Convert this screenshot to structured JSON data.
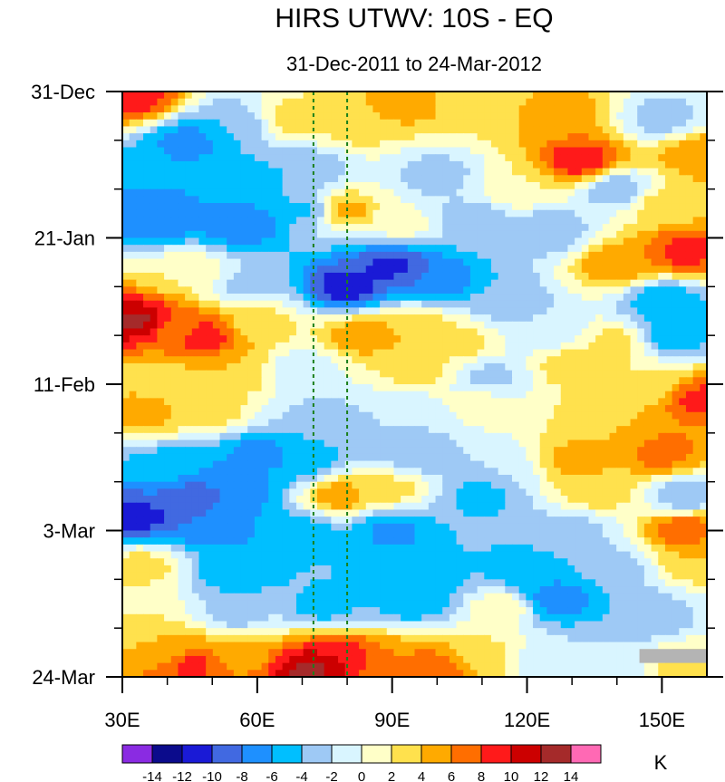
{
  "chart_data": {
    "type": "heatmap",
    "title": "HIRS UTWV: 10S - EQ",
    "subtitle": "31-Dec-2011 to 24-Mar-2012",
    "x": {
      "range": [
        30,
        160
      ],
      "ticks": [
        30,
        60,
        90,
        120,
        150
      ],
      "tick_labels": [
        "30E",
        "60E",
        "90E",
        "120E",
        "150E"
      ]
    },
    "y": {
      "range_days": [
        0,
        84
      ],
      "ticks": [
        0,
        21,
        42,
        63,
        84
      ],
      "tick_labels": [
        "31-Dec",
        "21-Jan",
        "11-Feb",
        "3-Mar",
        "24-Mar"
      ],
      "minor_step_days": 7,
      "direction": "time increases downward"
    },
    "reference_lines_lon": [
      72.5,
      80
    ],
    "missing_region": {
      "lon": [
        145,
        160
      ],
      "day": [
        80,
        82
      ]
    },
    "colorbar": {
      "unit": "K",
      "levels": [
        -14,
        -12,
        -10,
        -8,
        -6,
        -4,
        -2,
        0,
        2,
        4,
        6,
        8,
        10,
        12,
        14
      ],
      "level_labels": [
        "-14",
        "-12",
        "-10",
        "-8",
        "-6",
        "-4",
        "-2",
        "0",
        "2",
        "4",
        "6",
        "8",
        "10",
        "12",
        "14"
      ],
      "colors": [
        "#8a2be2",
        "#0b0b8c",
        "#1a1ad6",
        "#4169e1",
        "#1e90ff",
        "#00bfff",
        "#9ec9f5",
        "#d9f5ff",
        "#ffffc8",
        "#ffe14d",
        "#ffaa00",
        "#ff6e00",
        "#ff1a1a",
        "#cc0000",
        "#a52a2a",
        "#ff69b4"
      ]
    },
    "anomaly_features": [
      {
        "lon": 33,
        "day": 1,
        "value": 9
      },
      {
        "lon": 45,
        "day": 7,
        "value": -7
      },
      {
        "lon": 55,
        "day": 5,
        "value": -4
      },
      {
        "lon": 68,
        "day": 4,
        "value": 3
      },
      {
        "lon": 82,
        "day": 5,
        "value": 3
      },
      {
        "lon": 92,
        "day": 2,
        "value": 5
      },
      {
        "lon": 110,
        "day": 1,
        "value": 3
      },
      {
        "lon": 127,
        "day": 3,
        "value": 5
      },
      {
        "lon": 132,
        "day": 10,
        "value": 10
      },
      {
        "lon": 150,
        "day": 4,
        "value": -3
      },
      {
        "lon": 158,
        "day": 9,
        "value": 6
      },
      {
        "lon": 40,
        "day": 13,
        "value": -6
      },
      {
        "lon": 58,
        "day": 13,
        "value": -5
      },
      {
        "lon": 70,
        "day": 11,
        "value": -4
      },
      {
        "lon": 100,
        "day": 12,
        "value": -3
      },
      {
        "lon": 118,
        "day": 14,
        "value": 2
      },
      {
        "lon": 140,
        "day": 14,
        "value": -4
      },
      {
        "lon": 38,
        "day": 18,
        "value": -8
      },
      {
        "lon": 57,
        "day": 19,
        "value": -8
      },
      {
        "lon": 72,
        "day": 17,
        "value": -5
      },
      {
        "lon": 79,
        "day": 17,
        "value": 6
      },
      {
        "lon": 92,
        "day": 19,
        "value": 1
      },
      {
        "lon": 108,
        "day": 18,
        "value": -3
      },
      {
        "lon": 125,
        "day": 20,
        "value": -4
      },
      {
        "lon": 150,
        "day": 16,
        "value": 3
      },
      {
        "lon": 90,
        "day": 25,
        "value": -11
      },
      {
        "lon": 80,
        "day": 28,
        "value": -12
      },
      {
        "lon": 100,
        "day": 27,
        "value": -8
      },
      {
        "lon": 115,
        "day": 30,
        "value": -4
      },
      {
        "lon": 45,
        "day": 26,
        "value": 2
      },
      {
        "lon": 57,
        "day": 28,
        "value": -3
      },
      {
        "lon": 140,
        "day": 25,
        "value": 6
      },
      {
        "lon": 155,
        "day": 23,
        "value": 9
      },
      {
        "lon": 150,
        "day": 30,
        "value": -6
      },
      {
        "lon": 34,
        "day": 33,
        "value": 13
      },
      {
        "lon": 48,
        "day": 35,
        "value": 10
      },
      {
        "lon": 42,
        "day": 34,
        "value": 6
      },
      {
        "lon": 60,
        "day": 33,
        "value": 3
      },
      {
        "lon": 84,
        "day": 35,
        "value": 6
      },
      {
        "lon": 95,
        "day": 34,
        "value": 4
      },
      {
        "lon": 105,
        "day": 36,
        "value": 3
      },
      {
        "lon": 125,
        "day": 35,
        "value": -2
      },
      {
        "lon": 140,
        "day": 36,
        "value": 3
      },
      {
        "lon": 152,
        "day": 35,
        "value": -6
      },
      {
        "lon": 38,
        "day": 41,
        "value": 3
      },
      {
        "lon": 55,
        "day": 40,
        "value": 4
      },
      {
        "lon": 70,
        "day": 40,
        "value": -2
      },
      {
        "lon": 95,
        "day": 40,
        "value": 3
      },
      {
        "lon": 112,
        "day": 41,
        "value": -3
      },
      {
        "lon": 130,
        "day": 39,
        "value": 4
      },
      {
        "lon": 148,
        "day": 42,
        "value": 2
      },
      {
        "lon": 158,
        "day": 44,
        "value": 9
      },
      {
        "lon": 35,
        "day": 46,
        "value": 5
      },
      {
        "lon": 50,
        "day": 46,
        "value": 3
      },
      {
        "lon": 75,
        "day": 47,
        "value": -3
      },
      {
        "lon": 92,
        "day": 46,
        "value": -2
      },
      {
        "lon": 110,
        "day": 45,
        "value": 1
      },
      {
        "lon": 138,
        "day": 47,
        "value": 4
      },
      {
        "lon": 60,
        "day": 52,
        "value": -7
      },
      {
        "lon": 70,
        "day": 53,
        "value": -6
      },
      {
        "lon": 40,
        "day": 54,
        "value": -5
      },
      {
        "lon": 95,
        "day": 52,
        "value": -4
      },
      {
        "lon": 150,
        "day": 52,
        "value": 7
      },
      {
        "lon": 130,
        "day": 53,
        "value": 5
      },
      {
        "lon": 115,
        "day": 54,
        "value": -2
      },
      {
        "lon": 45,
        "day": 58,
        "value": -9
      },
      {
        "lon": 55,
        "day": 57,
        "value": -8
      },
      {
        "lon": 78,
        "day": 58,
        "value": 6
      },
      {
        "lon": 90,
        "day": 57,
        "value": 3
      },
      {
        "lon": 110,
        "day": 58,
        "value": -5
      },
      {
        "lon": 135,
        "day": 57,
        "value": 4
      },
      {
        "lon": 155,
        "day": 58,
        "value": -4
      },
      {
        "lon": 34,
        "day": 61,
        "value": -11
      },
      {
        "lon": 50,
        "day": 62,
        "value": -8
      },
      {
        "lon": 70,
        "day": 63,
        "value": -5
      },
      {
        "lon": 90,
        "day": 63,
        "value": -7
      },
      {
        "lon": 110,
        "day": 62,
        "value": -4
      },
      {
        "lon": 130,
        "day": 63,
        "value": -3
      },
      {
        "lon": 155,
        "day": 63,
        "value": 8
      },
      {
        "lon": 35,
        "day": 68,
        "value": 3
      },
      {
        "lon": 55,
        "day": 69,
        "value": -6
      },
      {
        "lon": 80,
        "day": 68,
        "value": -4
      },
      {
        "lon": 95,
        "day": 70,
        "value": -6
      },
      {
        "lon": 120,
        "day": 69,
        "value": -6
      },
      {
        "lon": 140,
        "day": 68,
        "value": -3
      },
      {
        "lon": 157,
        "day": 67,
        "value": 4
      },
      {
        "lon": 33,
        "day": 75,
        "value": 2
      },
      {
        "lon": 55,
        "day": 75,
        "value": -3
      },
      {
        "lon": 75,
        "day": 74,
        "value": -5
      },
      {
        "lon": 94,
        "day": 73,
        "value": -6
      },
      {
        "lon": 115,
        "day": 74,
        "value": 2
      },
      {
        "lon": 126,
        "day": 73,
        "value": -8
      },
      {
        "lon": 145,
        "day": 75,
        "value": -4
      },
      {
        "lon": 40,
        "day": 80,
        "value": 4
      },
      {
        "lon": 45,
        "day": 82,
        "value": 9
      },
      {
        "lon": 56,
        "day": 81,
        "value": 5
      },
      {
        "lon": 72,
        "day": 83,
        "value": 13
      },
      {
        "lon": 78,
        "day": 81,
        "value": 10
      },
      {
        "lon": 90,
        "day": 82,
        "value": 6
      },
      {
        "lon": 100,
        "day": 83,
        "value": 8
      },
      {
        "lon": 110,
        "day": 81,
        "value": 3
      },
      {
        "lon": 125,
        "day": 82,
        "value": -2
      },
      {
        "lon": 140,
        "day": 83,
        "value": -1
      },
      {
        "lon": 155,
        "day": 83,
        "value": 3
      }
    ]
  }
}
